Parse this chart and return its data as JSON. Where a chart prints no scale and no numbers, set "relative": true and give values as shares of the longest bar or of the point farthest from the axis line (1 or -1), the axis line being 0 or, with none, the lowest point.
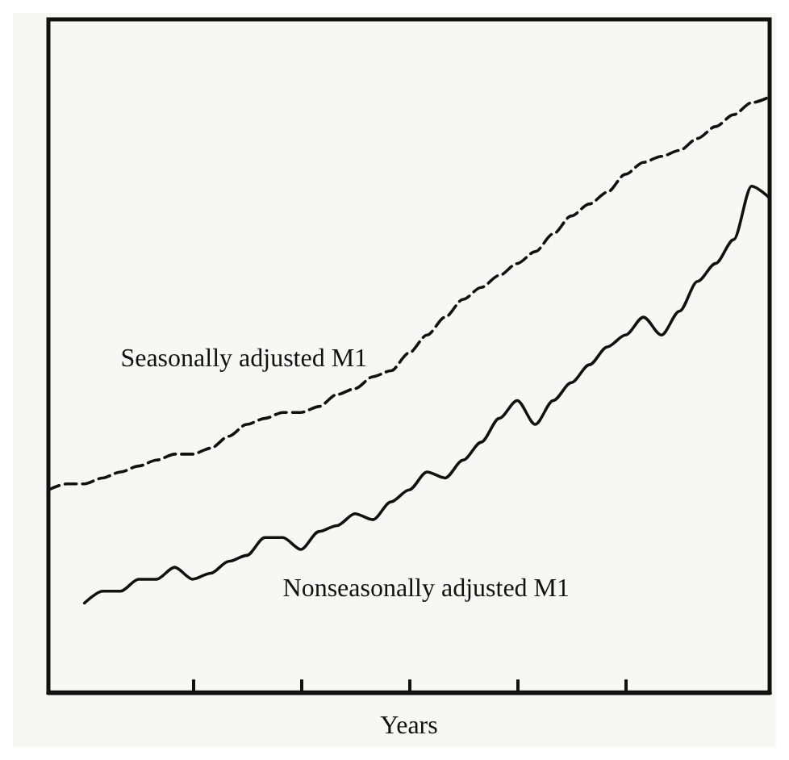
{
  "chart_data": {
    "type": "line",
    "relative": true,
    "xlabel": "Years",
    "categories": [
      null,
      null,
      null,
      null,
      null,
      null,
      null,
      null,
      null,
      null,
      null,
      null,
      null,
      null,
      null,
      null,
      null,
      null,
      null,
      null,
      null,
      null,
      null,
      null,
      null,
      null,
      null,
      null,
      null,
      null,
      null,
      null,
      null,
      null,
      null,
      null,
      null,
      null,
      null,
      null,
      null
    ],
    "series": [
      {
        "name": "Seasonally adjusted M1",
        "color": "#111111",
        "line_style": "dashed",
        "values": [
          0.34,
          0.35,
          0.35,
          0.36,
          0.37,
          0.38,
          0.39,
          0.4,
          0.4,
          0.41,
          0.43,
          0.45,
          0.46,
          0.47,
          0.47,
          0.48,
          0.5,
          0.51,
          0.53,
          0.54,
          0.57,
          0.6,
          0.63,
          0.66,
          0.68,
          0.7,
          0.72,
          0.74,
          0.77,
          0.8,
          0.82,
          0.84,
          0.87,
          0.89,
          0.9,
          0.91,
          0.93,
          0.95,
          0.97,
          0.99,
          1
        ]
      },
      {
        "name": "Nonseasonally adjusted M1",
        "color": "#111111",
        "line_style": "solid",
        "values": [
          null,
          null,
          0.15,
          0.17,
          0.17,
          0.19,
          0.19,
          0.21,
          0.19,
          0.2,
          0.22,
          0.23,
          0.26,
          0.26,
          0.24,
          0.27,
          0.28,
          0.3,
          0.29,
          0.32,
          0.34,
          0.37,
          0.36,
          0.39,
          0.42,
          0.46,
          0.49,
          0.45,
          0.49,
          0.52,
          0.55,
          0.58,
          0.6,
          0.63,
          0.6,
          0.64,
          0.69,
          0.72,
          0.76,
          0.85,
          0.83
        ]
      }
    ],
    "grid": false,
    "legend": false,
    "marker": "none"
  }
}
